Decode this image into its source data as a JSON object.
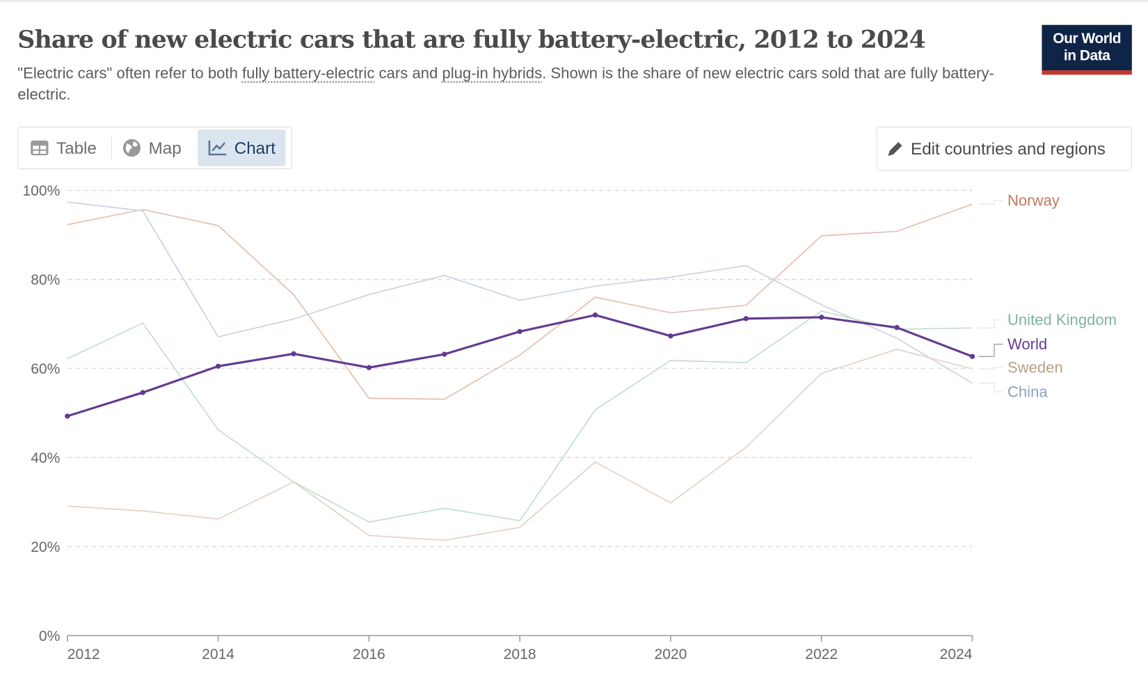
{
  "header": {
    "title": "Share of new electric cars that are fully battery-electric, 2012 to 2024",
    "subtitle_parts": [
      "\"Electric cars\" often refer to both ",
      "fully battery-electric",
      " cars and ",
      "plug-in hybrids",
      ". Shown is the share of new electric cars sold that are fully battery-electric."
    ],
    "logo_line1": "Our World",
    "logo_line2": "in Data"
  },
  "tabs": [
    {
      "label": "Table",
      "icon": "table-icon"
    },
    {
      "label": "Map",
      "icon": "globe-icon"
    },
    {
      "label": "Chart",
      "icon": "line-chart-icon",
      "active": true
    }
  ],
  "edit_button": {
    "label": "Edit countries and regions",
    "icon": "pencil-icon"
  },
  "chart_data": {
    "type": "line",
    "title": "Share of new electric cars that are fully battery-electric, 2012 to 2024",
    "x": [
      2012,
      2013,
      2014,
      2015,
      2016,
      2017,
      2018,
      2019,
      2020,
      2021,
      2022,
      2023,
      2024
    ],
    "xticks": [
      "2012",
      "2014",
      "2016",
      "2018",
      "2020",
      "2022",
      "2024"
    ],
    "yticks": [
      "0%",
      "20%",
      "40%",
      "60%",
      "80%",
      "100%"
    ],
    "ylim": [
      0,
      100
    ],
    "grid": "horizontal dashed",
    "legend": "right, end-of-line labels",
    "series": [
      {
        "name": "Norway",
        "color": "#c07a5e",
        "line": "#e5bfb0",
        "values": [
          92.3,
          95.7,
          92.1,
          76.6,
          53.3,
          53.1,
          63.0,
          76.0,
          72.5,
          74.2,
          89.8,
          90.8,
          96.9
        ]
      },
      {
        "name": "China",
        "color": "#8fa0c4",
        "line": "#c9d1e4",
        "values": [
          97.4,
          95.4,
          67.1,
          71.1,
          76.6,
          80.9,
          75.3,
          78.5,
          80.5,
          83.1,
          74.3,
          66.8,
          56.7
        ]
      },
      {
        "name": "United Kingdom",
        "color": "#7fb3a1",
        "line": "#c2ddd3",
        "values": [
          62.2,
          70.2,
          46.2,
          34.5,
          25.5,
          28.6,
          25.8,
          50.7,
          61.8,
          61.3,
          72.9,
          68.8,
          69.1
        ]
      },
      {
        "name": "Sweden",
        "color": "#b8a285",
        "line": "#e1d3c4",
        "values": [
          29.1,
          28.0,
          26.2,
          34.5,
          22.5,
          21.4,
          24.3,
          39.0,
          29.8,
          42.3,
          58.9,
          64.3,
          59.9
        ]
      },
      {
        "name": "World",
        "color": "#643b8f",
        "line": "#643b8f",
        "highlight": true,
        "values": [
          49.3,
          54.6,
          60.5,
          63.3,
          60.2,
          63.2,
          68.3,
          72.0,
          67.3,
          71.2,
          71.5,
          69.2,
          62.7
        ]
      }
    ]
  }
}
